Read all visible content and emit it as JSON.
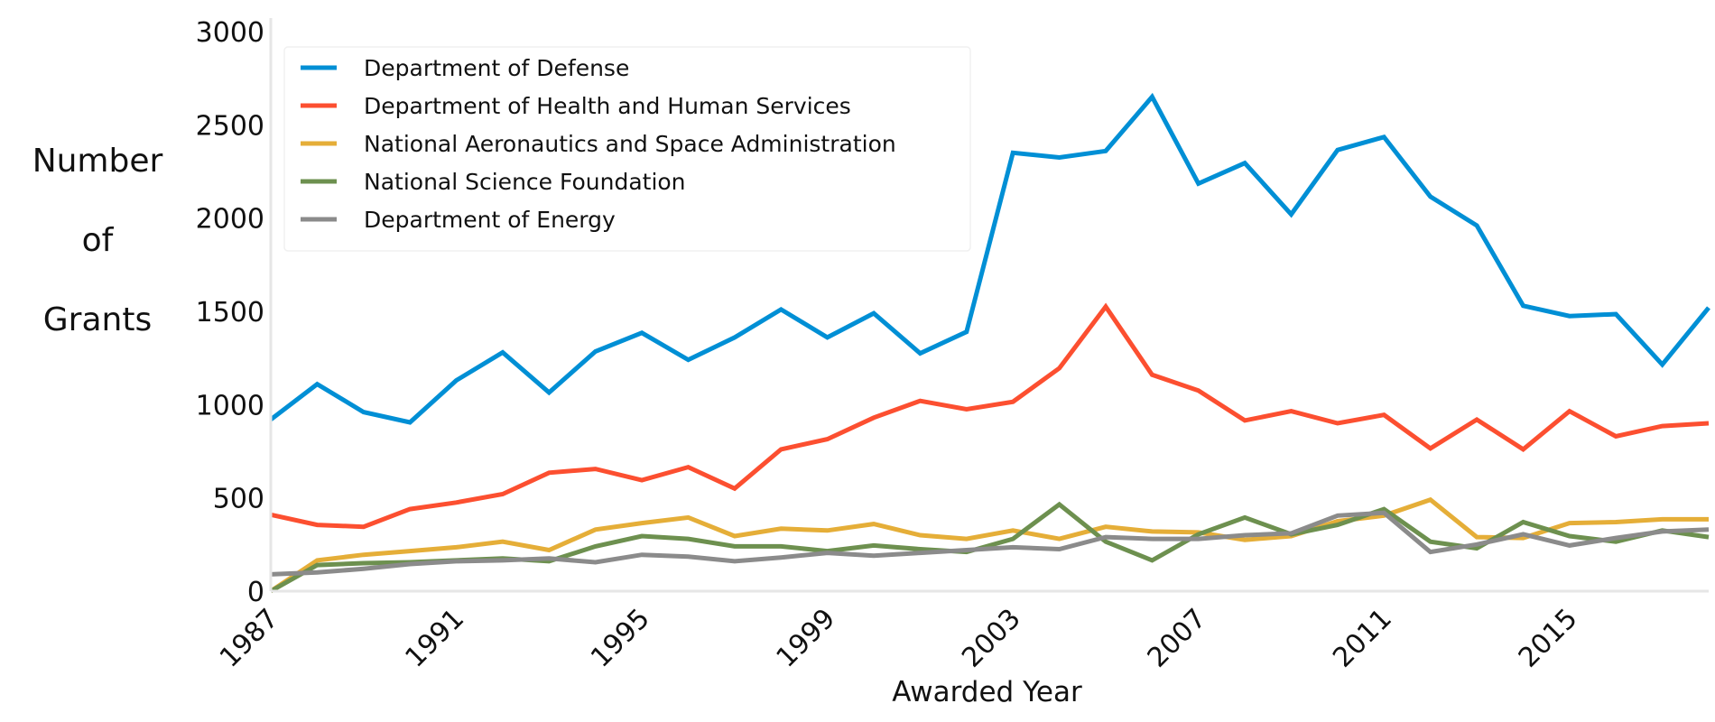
{
  "chart_data": {
    "type": "line",
    "title": "",
    "xlabel": "Awarded Year",
    "ylabel_lines": [
      "Number",
      "of",
      "Grants"
    ],
    "xlim": [
      1987,
      2018
    ],
    "ylim": [
      0,
      3000
    ],
    "x_ticks": [
      1987,
      1991,
      1995,
      1999,
      2003,
      2007,
      2011,
      2015
    ],
    "y_ticks": [
      0,
      500,
      1000,
      1500,
      2000,
      2500,
      3000
    ],
    "grid": false,
    "legend_position": "top-left",
    "x": [
      1987,
      1988,
      1989,
      1990,
      1991,
      1992,
      1993,
      1994,
      1995,
      1996,
      1997,
      1998,
      1999,
      2000,
      2001,
      2002,
      2003,
      2004,
      2005,
      2006,
      2007,
      2008,
      2009,
      2010,
      2011,
      2012,
      2013,
      2014,
      2015,
      2016,
      2017,
      2018
    ],
    "series": [
      {
        "name": "Department of Defense",
        "color": "#008fd5",
        "values": [
          920,
          1110,
          960,
          905,
          1130,
          1280,
          1065,
          1285,
          1385,
          1240,
          1360,
          1510,
          1360,
          1490,
          1275,
          1390,
          2350,
          2325,
          2360,
          2650,
          2185,
          2295,
          2020,
          2365,
          2435,
          2115,
          1960,
          1530,
          1475,
          1485,
          1215,
          1520
        ]
      },
      {
        "name": "Department of Health and Human Services",
        "color": "#fc4f30",
        "values": [
          410,
          355,
          345,
          440,
          475,
          520,
          635,
          655,
          595,
          665,
          550,
          760,
          815,
          930,
          1020,
          975,
          1015,
          1195,
          1525,
          1160,
          1075,
          915,
          965,
          900,
          945,
          765,
          920,
          760,
          965,
          830,
          885,
          900
        ]
      },
      {
        "name": "National Aeronautics and Space Administration",
        "color": "#e5ae38",
        "values": [
          0,
          165,
          195,
          215,
          235,
          265,
          220,
          330,
          365,
          395,
          295,
          335,
          325,
          360,
          300,
          280,
          325,
          280,
          345,
          320,
          315,
          275,
          295,
          375,
          405,
          490,
          290,
          285,
          365,
          370,
          385,
          385
        ]
      },
      {
        "name": "National Science Foundation",
        "color": "#6d904f",
        "values": [
          0,
          140,
          150,
          155,
          165,
          175,
          160,
          240,
          295,
          280,
          240,
          240,
          215,
          245,
          225,
          210,
          280,
          465,
          265,
          165,
          305,
          395,
          305,
          355,
          440,
          265,
          230,
          370,
          295,
          265,
          325,
          290
        ]
      },
      {
        "name": "Department of Energy",
        "color": "#8b8b8b",
        "values": [
          90,
          100,
          120,
          145,
          160,
          165,
          175,
          155,
          195,
          185,
          160,
          180,
          205,
          190,
          205,
          220,
          235,
          225,
          290,
          280,
          280,
          300,
          310,
          405,
          420,
          210,
          250,
          305,
          245,
          285,
          320,
          330
        ]
      }
    ]
  }
}
